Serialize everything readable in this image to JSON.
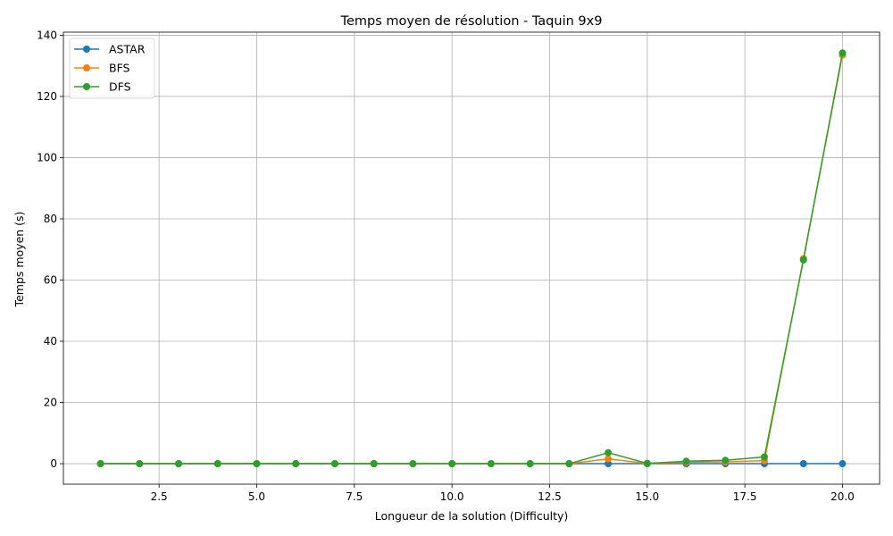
{
  "chart_data": {
    "type": "line",
    "title": "Temps moyen de résolution - Taquin 9x9",
    "xlabel": "Longueur de la solution (Difficulty)",
    "ylabel": "Temps moyen (s)",
    "xlim": [
      0.05,
      20.95
    ],
    "ylim": [
      -6.7,
      141.0
    ],
    "xticks": [
      2.5,
      5.0,
      7.5,
      10.0,
      12.5,
      15.0,
      17.5,
      20.0
    ],
    "xtick_labels": [
      "2.5",
      "5.0",
      "7.5",
      "10.0",
      "12.5",
      "15.0",
      "17.5",
      "20.0"
    ],
    "yticks": [
      0,
      20,
      40,
      60,
      80,
      100,
      120,
      140
    ],
    "ytick_labels": [
      "0",
      "20",
      "40",
      "60",
      "80",
      "100",
      "120",
      "140"
    ],
    "grid": true,
    "legend_position": "top-left",
    "x": [
      1,
      2,
      3,
      4,
      5,
      6,
      7,
      8,
      9,
      10,
      11,
      12,
      13,
      14,
      15,
      16,
      17,
      18,
      19,
      20
    ],
    "series": [
      {
        "name": "ASTAR",
        "color": "#1f77b4",
        "values": [
          0,
          0,
          0,
          0,
          0,
          0,
          0,
          0,
          0,
          0,
          0,
          0,
          0,
          0,
          0,
          0,
          0,
          0,
          0,
          0
        ]
      },
      {
        "name": "BFS",
        "color": "#ff7f0e",
        "values": [
          0,
          0,
          0,
          0,
          0,
          0,
          0,
          0,
          0,
          0,
          0,
          0,
          0,
          1.6,
          0.1,
          0.5,
          0.6,
          1.0,
          67.0,
          133.5
        ]
      },
      {
        "name": "DFS",
        "color": "#2ca02c",
        "values": [
          0,
          0,
          0,
          0,
          0,
          0,
          0,
          0,
          0,
          0,
          0,
          0,
          0,
          3.6,
          0.1,
          0.8,
          1.1,
          2.2,
          66.6,
          134.2
        ]
      }
    ]
  }
}
